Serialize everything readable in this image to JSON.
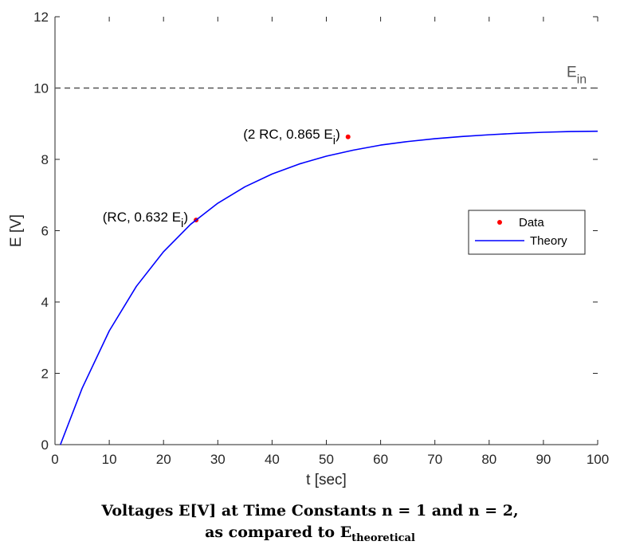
{
  "chart_data": {
    "type": "line",
    "xlabel": "t [sec]",
    "ylabel": "E [V]",
    "xlim": [
      0,
      100
    ],
    "ylim": [
      0,
      12
    ],
    "xticks": [
      0,
      10,
      20,
      30,
      40,
      50,
      60,
      70,
      80,
      90,
      100
    ],
    "yticks": [
      0,
      2,
      4,
      6,
      8,
      10,
      12
    ],
    "grid": false,
    "series": [
      {
        "name": "Data",
        "kind": "scatter",
        "color": "#ff0000",
        "x": [
          26,
          54
        ],
        "y": [
          6.3,
          8.63
        ]
      },
      {
        "name": "Theory",
        "kind": "line",
        "color": "#0000ff",
        "x": [
          1,
          5,
          10,
          15,
          20,
          25,
          30,
          35,
          40,
          45,
          50,
          55,
          60,
          65,
          70,
          75,
          80,
          85,
          90,
          95,
          100
        ],
        "y": [
          0,
          1.58,
          3.19,
          4.44,
          5.41,
          6.18,
          6.77,
          7.23,
          7.59,
          7.87,
          8.09,
          8.26,
          8.4,
          8.5,
          8.58,
          8.64,
          8.69,
          8.73,
          8.76,
          8.78,
          8.79
        ]
      }
    ],
    "reference_line": {
      "y": 10,
      "style": "dashed",
      "color": "#555555",
      "label": "E",
      "label_sub": "in"
    },
    "annotations": [
      {
        "text": "(RC, 0.632 E",
        "sub": "i",
        "close": ")",
        "x": 26,
        "y": 6.3
      },
      {
        "text": "(2 RC, 0.865 E",
        "sub": "i",
        "close": ")",
        "x": 54,
        "y": 8.63
      }
    ],
    "legend": {
      "position": "right",
      "entries": [
        "Data",
        "Theory"
      ]
    }
  },
  "caption": {
    "line1": "Voltages E[V] at Time Constants n = 1 and n = 2,",
    "line2_text": "as compared to E",
    "line2_sub": "theoretical"
  }
}
